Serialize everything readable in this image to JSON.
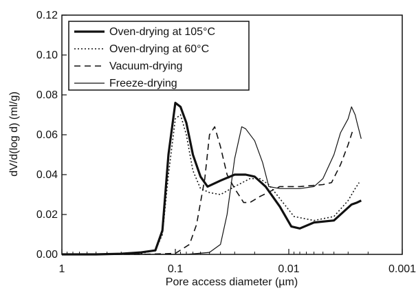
{
  "chart_data": {
    "type": "line",
    "xlabel": "Pore access diameter (µm)",
    "ylabel": "dV/d(log d) (ml/g)",
    "x_scale": "log-reversed",
    "xlim": [
      1,
      0.001
    ],
    "ylim": [
      0,
      0.12
    ],
    "x_ticks": [
      "1",
      "0.1",
      "0.01",
      "0.001"
    ],
    "y_ticks": [
      "0.00",
      "0.02",
      "0.04",
      "0.06",
      "0.08",
      "0.10",
      "0.12"
    ],
    "grid": false,
    "legend_position": "top-left",
    "series": [
      {
        "name": "Oven-drying at 105°C",
        "style": "solid-thick",
        "points": [
          [
            1,
            0
          ],
          [
            0.5,
            0
          ],
          [
            0.3,
            0.0003
          ],
          [
            0.2,
            0.001
          ],
          [
            0.15,
            0.002
          ],
          [
            0.13,
            0.012
          ],
          [
            0.115,
            0.05
          ],
          [
            0.1,
            0.076
          ],
          [
            0.09,
            0.074
          ],
          [
            0.08,
            0.066
          ],
          [
            0.07,
            0.05
          ],
          [
            0.06,
            0.039
          ],
          [
            0.052,
            0.034
          ],
          [
            0.04,
            0.037
          ],
          [
            0.03,
            0.04
          ],
          [
            0.024,
            0.04
          ],
          [
            0.02,
            0.039
          ],
          [
            0.016,
            0.034
          ],
          [
            0.012,
            0.024
          ],
          [
            0.0095,
            0.014
          ],
          [
            0.008,
            0.013
          ],
          [
            0.006,
            0.016
          ],
          [
            0.004,
            0.017
          ],
          [
            0.0035,
            0.02
          ],
          [
            0.0028,
            0.025
          ],
          [
            0.0025,
            0.026
          ],
          [
            0.0023,
            0.027
          ]
        ]
      },
      {
        "name": "Oven-drying at 60°C",
        "style": "dotted",
        "points": [
          [
            1,
            0
          ],
          [
            0.4,
            0
          ],
          [
            0.2,
            0.0005
          ],
          [
            0.15,
            0.002
          ],
          [
            0.13,
            0.01
          ],
          [
            0.115,
            0.04
          ],
          [
            0.1,
            0.068
          ],
          [
            0.09,
            0.07
          ],
          [
            0.08,
            0.06
          ],
          [
            0.07,
            0.042
          ],
          [
            0.06,
            0.033
          ],
          [
            0.05,
            0.031
          ],
          [
            0.04,
            0.03
          ],
          [
            0.03,
            0.034
          ],
          [
            0.022,
            0.038
          ],
          [
            0.018,
            0.038
          ],
          [
            0.015,
            0.035
          ],
          [
            0.012,
            0.028
          ],
          [
            0.009,
            0.019
          ],
          [
            0.006,
            0.017
          ],
          [
            0.004,
            0.019
          ],
          [
            0.003,
            0.027
          ],
          [
            0.0026,
            0.033
          ],
          [
            0.0024,
            0.036
          ]
        ]
      },
      {
        "name": "Vacuum-drying",
        "style": "dashed",
        "points": [
          [
            1,
            0
          ],
          [
            0.2,
            0
          ],
          [
            0.1,
            0.0005
          ],
          [
            0.075,
            0.005
          ],
          [
            0.065,
            0.015
          ],
          [
            0.055,
            0.038
          ],
          [
            0.05,
            0.06
          ],
          [
            0.045,
            0.064
          ],
          [
            0.04,
            0.054
          ],
          [
            0.035,
            0.04
          ],
          [
            0.03,
            0.033
          ],
          [
            0.027,
            0.029
          ],
          [
            0.025,
            0.026
          ],
          [
            0.022,
            0.026
          ],
          [
            0.018,
            0.029
          ],
          [
            0.012,
            0.034
          ],
          [
            0.008,
            0.034
          ],
          [
            0.005,
            0.035
          ],
          [
            0.0042,
            0.036
          ],
          [
            0.0035,
            0.045
          ],
          [
            0.003,
            0.055
          ],
          [
            0.0027,
            0.063
          ]
        ]
      },
      {
        "name": "Freeze-drying",
        "style": "solid-thin",
        "points": [
          [
            1,
            0
          ],
          [
            0.08,
            0
          ],
          [
            0.05,
            0.001
          ],
          [
            0.04,
            0.005
          ],
          [
            0.035,
            0.02
          ],
          [
            0.03,
            0.048
          ],
          [
            0.026,
            0.064
          ],
          [
            0.024,
            0.063
          ],
          [
            0.02,
            0.057
          ],
          [
            0.017,
            0.046
          ],
          [
            0.015,
            0.034
          ],
          [
            0.012,
            0.033
          ],
          [
            0.008,
            0.033
          ],
          [
            0.006,
            0.034
          ],
          [
            0.005,
            0.038
          ],
          [
            0.004,
            0.05
          ],
          [
            0.0035,
            0.061
          ],
          [
            0.003,
            0.068
          ],
          [
            0.0028,
            0.074
          ],
          [
            0.0026,
            0.07
          ],
          [
            0.0025,
            0.066
          ],
          [
            0.0023,
            0.058
          ]
        ]
      }
    ]
  }
}
